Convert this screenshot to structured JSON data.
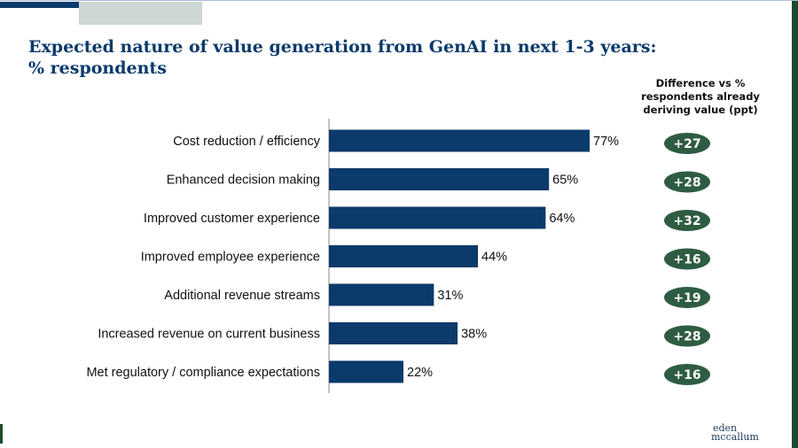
{
  "title_line1": "Expected nature of value generation from GenAI in next 1-3 years:",
  "title_line2": "% respondents",
  "diff_header": [
    "Difference vs %",
    "respondents already",
    "deriving value (ppt)"
  ],
  "logo": [
    "eden",
    "mccallum"
  ],
  "colors": {
    "bar": "#0b3a6b",
    "badge": "#2e5c43",
    "title": "#0b3a6b"
  },
  "chart_data": {
    "type": "bar",
    "orientation": "horizontal",
    "categories": [
      "Cost reduction / efficiency",
      "Enhanced decision making",
      "Improved customer experience",
      "Improved employee experience",
      "Additional revenue streams",
      "Increased revenue on current business",
      "Met regulatory / compliance expectations"
    ],
    "values": [
      77,
      65,
      64,
      44,
      31,
      38,
      22
    ],
    "value_labels": [
      "77%",
      "65%",
      "64%",
      "44%",
      "31%",
      "38%",
      "22%"
    ],
    "differences": [
      "+27",
      "+28",
      "+32",
      "+16",
      "+19",
      "+28",
      "+16"
    ],
    "xlim": [
      0,
      100
    ],
    "grid": false
  }
}
